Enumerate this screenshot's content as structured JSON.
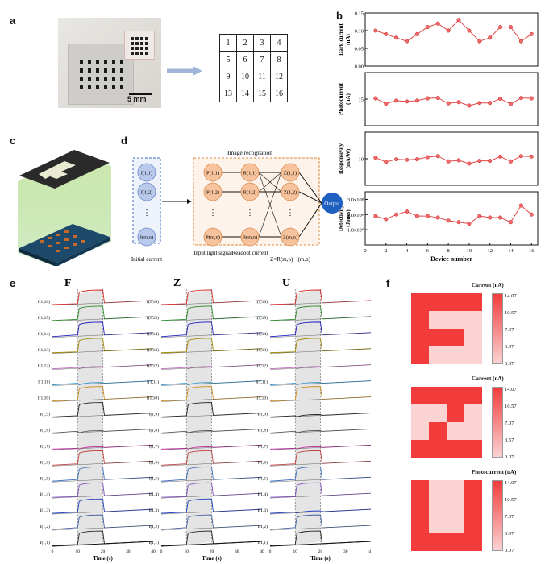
{
  "panel_labels": {
    "a": "a",
    "b": "b",
    "c": "c",
    "d": "d",
    "e": "e",
    "f": "f"
  },
  "panel_a": {
    "scale_bar": "5 mm",
    "grid_numbers": [
      "1",
      "2",
      "3",
      "4",
      "5",
      "6",
      "7",
      "8",
      "9",
      "10",
      "11",
      "12",
      "13",
      "14",
      "15",
      "16"
    ]
  },
  "panel_b": {
    "xlabel": "Device number",
    "x_ticks": [
      "0",
      "2",
      "4",
      "6",
      "8",
      "10",
      "12",
      "14",
      "16"
    ],
    "subplots": [
      {
        "ylabel": "Dark current",
        "yunit": "(nA)",
        "ticks": [
          "0.15",
          "0.10",
          "0.05",
          "0.00"
        ]
      },
      {
        "ylabel": "Photocurrent",
        "yunit": "(nA)",
        "ticks": [
          "15"
        ]
      },
      {
        "ylabel": "Responsivity",
        "yunit": "(mA/W)",
        "ticks": [
          "10"
        ]
      },
      {
        "ylabel": "Detectivity",
        "yunit": "(Jones)",
        "ticks": [
          "3.0x10⁸",
          "2.0x10⁸",
          "1.0x10⁸"
        ]
      }
    ]
  },
  "panel_d": {
    "title": "Image recognation",
    "initial_nodes": [
      "I(1,1)",
      "I(1,2)",
      "⋮",
      "I(m,n)"
    ],
    "p_nodes": [
      "P(1,1)",
      "P(1,2)",
      "⋮",
      "P(m,n)"
    ],
    "r_nodes": [
      "R(1,1)",
      "R(1,2)",
      "⋮",
      "R(m,n)"
    ],
    "z_nodes": [
      "Z(1,1)",
      "Z(1,2)",
      "⋮",
      "Z(m,n)"
    ],
    "output": "Output",
    "caption_initial": "Initial current",
    "caption_input": "Input\nlight signal",
    "caption_readout": "Readout\ncurrent",
    "equation": "Z=R(m,n)−I(m,n)"
  },
  "panel_e": {
    "letters": [
      "F",
      "Z",
      "U"
    ],
    "row_labels": [
      "I(1,16)",
      "I(1,15)",
      "I(1,14)",
      "I(1,13)",
      "I(1,12)",
      "I(1,11)",
      "I(1,10)",
      "I(1,9)",
      "I(1,8)",
      "I(1,7)",
      "I(1,6)",
      "I(1,5)",
      "I(1,4)",
      "I(1,3)",
      "I(1,2)",
      "I(1,1)"
    ],
    "xlabel": "Time (s)",
    "x_ticks": [
      "0",
      "10",
      "20",
      "30",
      "40"
    ],
    "line_colors": [
      "#d62728",
      "#2e8b2e",
      "#1f1fbf",
      "#a08a00",
      "#c06ac0",
      "#3a9bd0",
      "#d09020",
      "#222222",
      "#555555",
      "#c030a0",
      "#c04040",
      "#4070c0",
      "#8050c0",
      "#1f3fbf",
      "#4060a0",
      "#222222"
    ]
  },
  "panel_f": {
    "maps": [
      {
        "title": "Current (nA)"
      },
      {
        "title": "Current (nA)"
      },
      {
        "title": "Photocurrent (nA)"
      }
    ],
    "colorbar_ticks": [
      "14.07",
      "10.57",
      "7.07",
      "3.57",
      "0.07"
    ],
    "colors": {
      "high": "#f23c3c",
      "mid": "#f46a6a",
      "low": "#fbd3d3"
    }
  },
  "chart_data": [
    {
      "type": "line",
      "title": "",
      "xlabel": "Device number",
      "x": [
        1,
        2,
        3,
        4,
        5,
        6,
        7,
        8,
        9,
        10,
        11,
        12,
        13,
        14,
        15,
        16
      ],
      "series": [
        {
          "name": "Dark current (nA)",
          "values": [
            0.1,
            0.09,
            0.08,
            0.07,
            0.09,
            0.11,
            0.12,
            0.1,
            0.13,
            0.1,
            0.07,
            0.08,
            0.11,
            0.11,
            0.07,
            0.09
          ]
        },
        {
          "name": "Photocurrent (nA)",
          "values": [
            15.2,
            13.8,
            14.6,
            14.4,
            14.6,
            15.2,
            15.3,
            13.9,
            14.2,
            13.3,
            14.0,
            14.0,
            15.1,
            13.7,
            15.3,
            15.2
          ]
        },
        {
          "name": "Responsivity (mA/W)",
          "values": [
            10.2,
            9.4,
            9.9,
            9.8,
            9.9,
            10.3,
            10.5,
            9.5,
            9.7,
            9.1,
            9.6,
            9.6,
            10.4,
            9.5,
            10.5,
            10.4
          ]
        },
        {
          "name": "Detectivity (Jones)",
          "values": [
            190000000.0,
            170000000.0,
            200000000.0,
            220000000.0,
            190000000.0,
            190000000.0,
            180000000.0,
            160000000.0,
            150000000.0,
            140000000.0,
            190000000.0,
            180000000.0,
            180000000.0,
            150000000.0,
            260000000.0,
            200000000.0
          ]
        }
      ]
    }
  ]
}
